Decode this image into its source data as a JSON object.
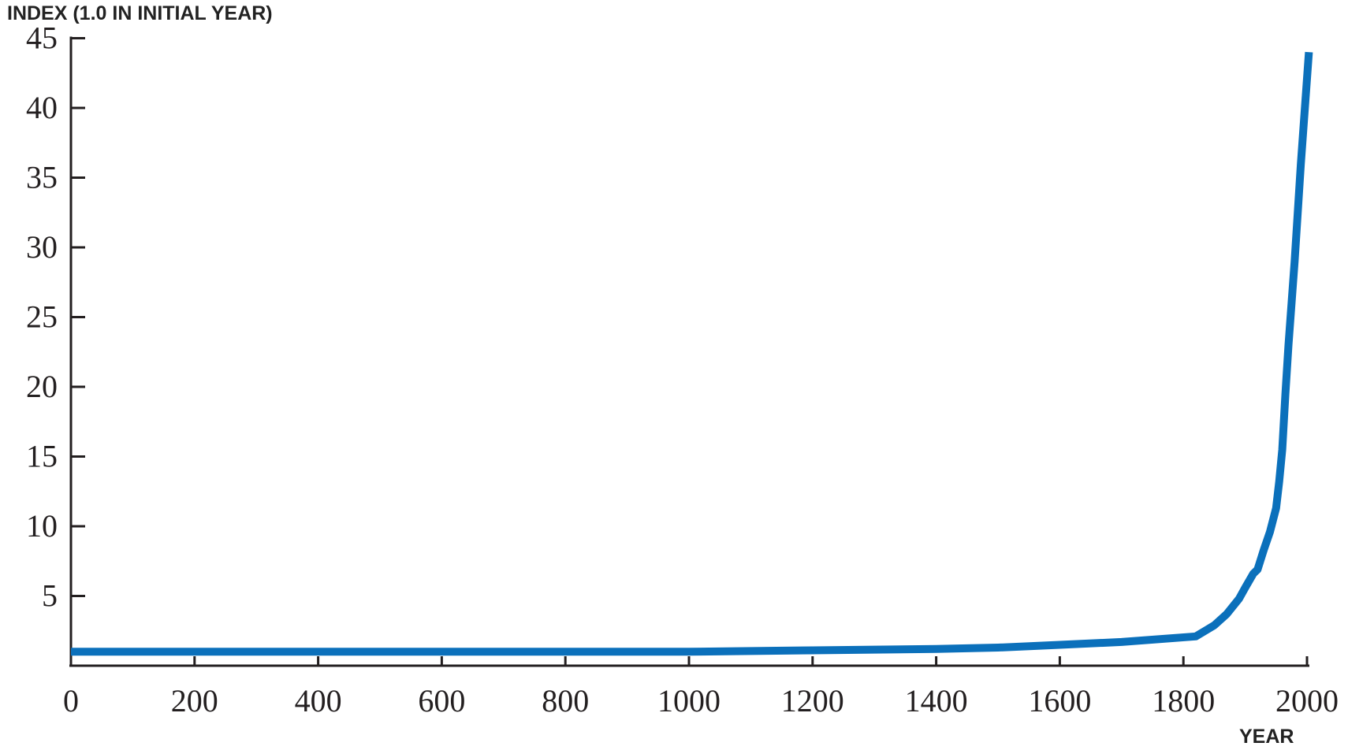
{
  "chart_data": {
    "type": "line",
    "ylabel": "INDEX (1.0 IN INITIAL YEAR)",
    "xlabel": "YEAR",
    "xlim": [
      0,
      2000
    ],
    "ylim": [
      0,
      45
    ],
    "x_ticks": [
      0,
      200,
      400,
      600,
      800,
      1000,
      1200,
      1400,
      1600,
      1800,
      2000
    ],
    "y_ticks": [
      5,
      10,
      15,
      20,
      25,
      30,
      35,
      40,
      45
    ],
    "x_tick_labels": [
      "0",
      "200",
      "400",
      "600",
      "800",
      "1000",
      "1200",
      "1400",
      "1600",
      "1800",
      "2000"
    ],
    "y_tick_labels": [
      "5",
      "10",
      "15",
      "20",
      "25",
      "30",
      "35",
      "40",
      "45"
    ],
    "grid": false,
    "line_color": "#0b70bb",
    "axis_color": "#231f20",
    "series": [
      {
        "x": [
          0,
          200,
          400,
          600,
          800,
          1000,
          1100,
          1200,
          1300,
          1400,
          1500,
          1600,
          1700,
          1820,
          1850,
          1870,
          1890,
          1900,
          1913,
          1920,
          1930,
          1940,
          1950,
          1955,
          1960,
          1965,
          1970,
          1980,
          1990,
          2003
        ],
        "y": [
          1.0,
          1.0,
          1.0,
          1.0,
          1.0,
          1.0,
          1.05,
          1.1,
          1.15,
          1.2,
          1.3,
          1.5,
          1.7,
          2.1,
          2.9,
          3.7,
          4.8,
          5.6,
          6.6,
          6.9,
          8.3,
          9.6,
          11.3,
          13.2,
          15.5,
          19.5,
          23.0,
          29.0,
          36.0,
          44.0
        ]
      }
    ]
  }
}
